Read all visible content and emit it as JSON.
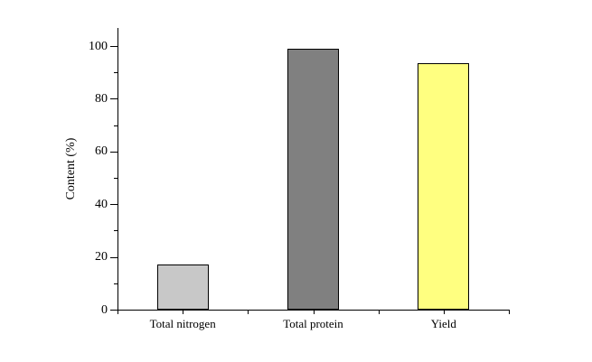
{
  "chart_data": {
    "type": "bar",
    "title": "",
    "categories": [
      "Total nitrogen",
      "Total protein",
      "Yield"
    ],
    "values": [
      17,
      99,
      93.5
    ],
    "bar_colors": [
      "#c8c8c8",
      "#808080",
      "#ffff80"
    ],
    "bar_edge_color": "#000000",
    "xlabel": "",
    "ylabel": "Content (%)",
    "ylim": [
      0,
      107
    ],
    "yticks": [
      0,
      20,
      40,
      60,
      80,
      100
    ],
    "minor_yticks": [
      10,
      30,
      50,
      70,
      90
    ],
    "grid": false,
    "legend_position": "none",
    "background_color": "#ffffff",
    "axis_color": "#000000"
  }
}
